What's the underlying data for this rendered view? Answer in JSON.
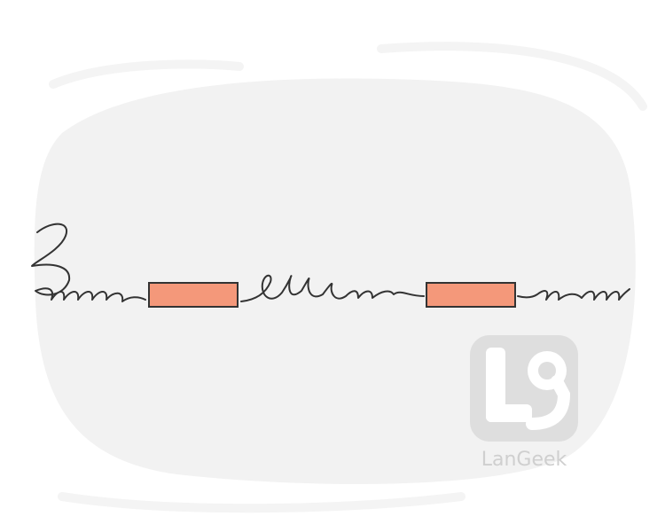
{
  "watermark": {
    "text": "LanGeek"
  }
}
